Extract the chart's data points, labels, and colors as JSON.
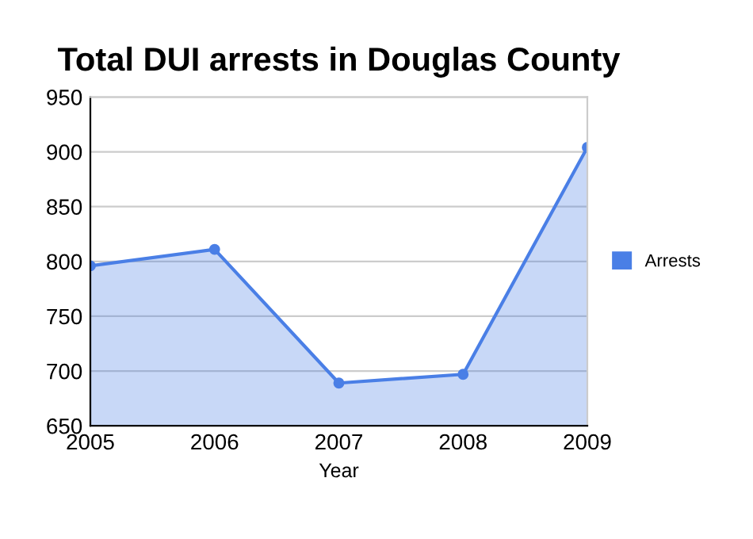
{
  "chart_data": {
    "type": "area",
    "title": "Total DUI arrests in Douglas County",
    "xlabel": "Year",
    "x": [
      2005,
      2006,
      2007,
      2008,
      2009
    ],
    "series": [
      {
        "name": "Arrests",
        "color": "#4a7fe6",
        "values": [
          796,
          811,
          689,
          697,
          904
        ]
      }
    ],
    "xlim": [
      2005,
      2009
    ],
    "xticks": [
      2005,
      2006,
      2007,
      2008,
      2009
    ],
    "ylim": [
      650,
      950
    ],
    "yticks": [
      650,
      700,
      750,
      800,
      850,
      900,
      950
    ],
    "grid": "y",
    "legend": "right",
    "marker": "circle",
    "line_style": "solid"
  }
}
